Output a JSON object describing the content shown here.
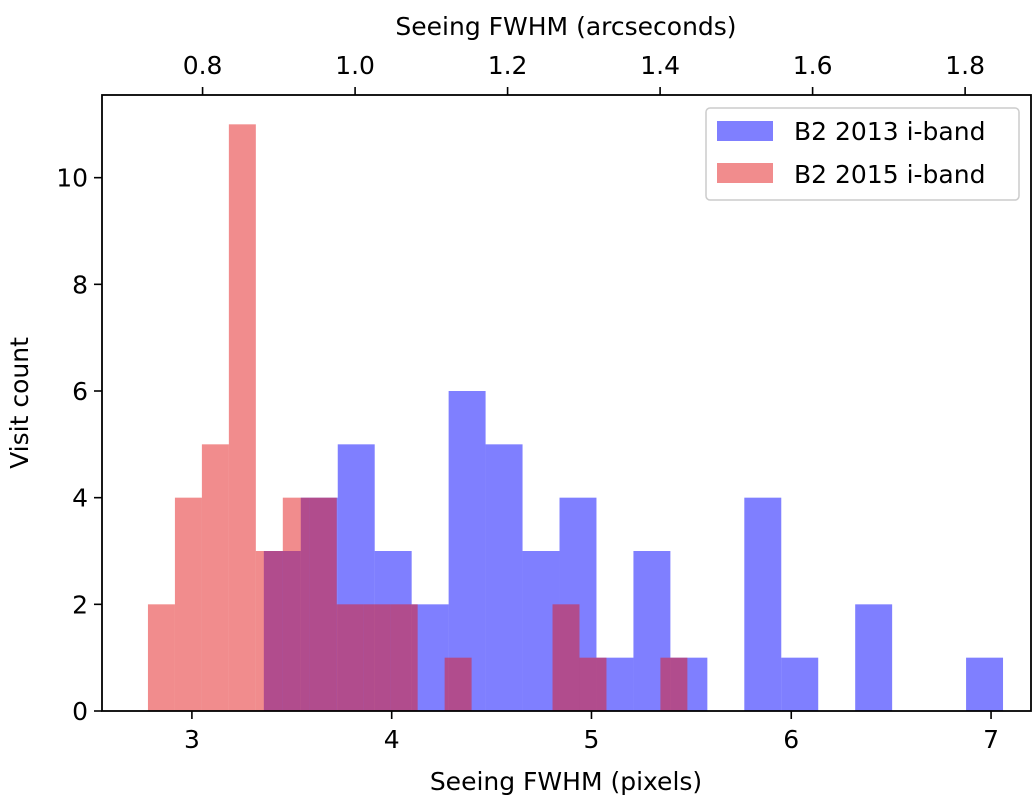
{
  "chart_data": {
    "type": "histogram",
    "xlabel": "Seeing FWHM (pixels)",
    "ylabel": "Visit count",
    "top_xlabel": "Seeing FWHM (arcseconds)",
    "xlim": [
      2.55,
      7.2
    ],
    "ylim": [
      0,
      11.55
    ],
    "xticks": [
      3,
      4,
      5,
      6,
      7
    ],
    "yticks": [
      0,
      2,
      4,
      6,
      8,
      10
    ],
    "top_axis": {
      "arcsec_per_pixel": 0.262,
      "ticks": [
        0.8,
        1.0,
        1.2,
        1.4,
        1.6,
        1.8
      ],
      "tick_labels": [
        "0.8",
        "1.0",
        "1.2",
        "1.4",
        "1.6",
        "1.8"
      ]
    },
    "legend_position": "top-right",
    "series": [
      {
        "name": "B2 2013 i-band",
        "color": "#0000ff",
        "alpha": 0.5,
        "bin_edges": [
          3.36,
          3.545,
          3.73,
          3.915,
          4.1,
          4.285,
          4.47,
          4.655,
          4.84,
          5.025,
          5.21,
          5.395,
          5.58,
          5.765,
          5.95,
          6.135,
          6.32,
          6.505,
          6.69,
          6.875,
          7.06
        ],
        "counts": [
          3,
          4,
          5,
          3,
          2,
          6,
          5,
          3,
          4,
          1,
          3,
          1,
          0,
          4,
          1,
          0,
          2,
          0,
          0,
          1
        ]
      },
      {
        "name": "B2 2015 i-band",
        "color": "#e31a1c",
        "alpha": 0.5,
        "bin_edges": [
          2.78,
          2.915,
          3.05,
          3.185,
          3.32,
          3.455,
          3.59,
          3.725,
          3.86,
          3.995,
          4.13,
          4.265,
          4.4,
          4.535,
          4.67,
          4.805,
          4.94,
          5.075,
          5.21,
          5.345,
          5.48
        ],
        "counts": [
          2,
          4,
          5,
          11,
          3,
          4,
          4,
          2,
          2,
          2,
          0,
          1,
          0,
          0,
          0,
          2,
          1,
          0,
          0,
          1
        ]
      }
    ]
  }
}
